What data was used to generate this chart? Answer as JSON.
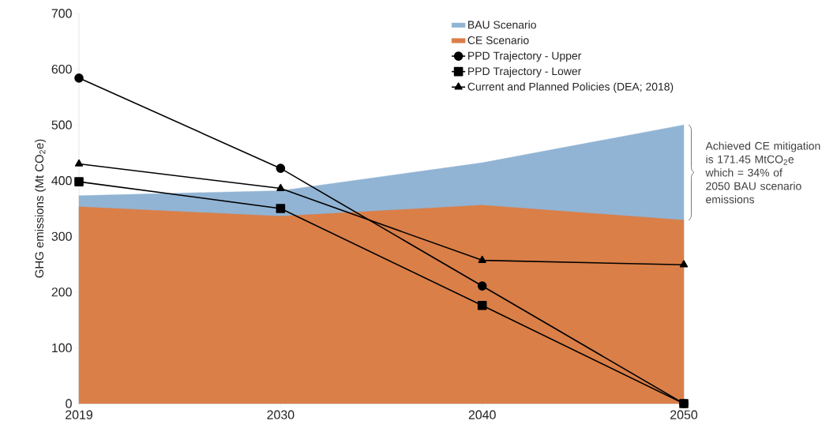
{
  "chart_data": {
    "type": "area",
    "ylabel": "GHG emissions (Mt CO$_{2}$e)",
    "categories": [
      "2019",
      "2030",
      "2040",
      "2050"
    ],
    "series": [
      {
        "name": "BAU Scenario",
        "color": "#92b4d4",
        "values": [
          373,
          382,
          432,
          500
        ]
      },
      {
        "name": "CE Scenario",
        "color": "#d97f47",
        "values": [
          353,
          336,
          356,
          329
        ]
      },
      {
        "name": "PPD Trajectory - Upper",
        "type": "line",
        "color": "#000000",
        "marker": "circle",
        "values": [
          584,
          422,
          211,
          0
        ]
      },
      {
        "name": "PPD Trajectory - Lower",
        "type": "line",
        "color": "#000000",
        "marker": "square",
        "values": [
          398,
          350,
          176,
          0
        ]
      },
      {
        "name": "Current and Planned Policies (DEA; 2018)",
        "type": "line",
        "color": "#000000",
        "marker": "triangle",
        "values": [
          430,
          386,
          257,
          249
        ]
      }
    ],
    "ylim": [
      0,
      700
    ],
    "yticks": [
      0,
      100,
      200,
      300,
      400,
      500,
      600,
      700
    ],
    "legend": "top right",
    "grid": false,
    "line_style": "solid",
    "annotations": [
      "Achieved CE mitigation is 171.45 MtCO$_{2}$e which = 34% of 2050 BAU scenario emissions"
    ]
  }
}
